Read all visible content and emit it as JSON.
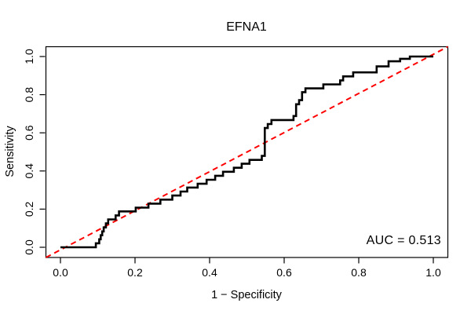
{
  "title": "EFNA1",
  "axes": {
    "xlabel": "1 − Specificity",
    "ylabel": "Sensitivity",
    "x_ticks": [
      "0.0",
      "0.2",
      "0.4",
      "0.6",
      "0.8",
      "1.0"
    ],
    "y_ticks": [
      "0.0",
      "0.2",
      "0.4",
      "0.6",
      "0.8",
      "1.0"
    ]
  },
  "annotation": {
    "auc_label": "AUC = 0.513"
  },
  "colors": {
    "curve": "#000000",
    "diagonal": "#ff0000",
    "box": "#000000",
    "background": "#ffffff",
    "text": "#000000"
  },
  "chart_data": {
    "type": "line",
    "subtype": "roc-step-curve",
    "title": "EFNA1",
    "xlabel": "1 − Specificity",
    "ylabel": "Sensitivity",
    "xlim": [
      0,
      1
    ],
    "ylim": [
      0,
      1
    ],
    "grid": false,
    "x_tick_values": [
      0.0,
      0.2,
      0.4,
      0.6,
      0.8,
      1.0
    ],
    "y_tick_values": [
      0.0,
      0.2,
      0.4,
      0.6,
      0.8,
      1.0
    ],
    "auc": 0.513,
    "diagonal_reference": {
      "from": [
        0,
        0
      ],
      "to": [
        1,
        1
      ],
      "style": "dashed",
      "color": "#ff0000"
    },
    "roc_curve_vertices": [
      [
        0.0,
        0.0
      ],
      [
        0.095,
        0.0
      ],
      [
        0.095,
        0.021
      ],
      [
        0.104,
        0.021
      ],
      [
        0.104,
        0.042
      ],
      [
        0.108,
        0.042
      ],
      [
        0.108,
        0.063
      ],
      [
        0.112,
        0.063
      ],
      [
        0.112,
        0.083
      ],
      [
        0.116,
        0.083
      ],
      [
        0.116,
        0.104
      ],
      [
        0.122,
        0.104
      ],
      [
        0.122,
        0.125
      ],
      [
        0.128,
        0.125
      ],
      [
        0.128,
        0.146
      ],
      [
        0.148,
        0.146
      ],
      [
        0.148,
        0.167
      ],
      [
        0.157,
        0.167
      ],
      [
        0.157,
        0.188
      ],
      [
        0.202,
        0.188
      ],
      [
        0.202,
        0.208
      ],
      [
        0.236,
        0.208
      ],
      [
        0.236,
        0.229
      ],
      [
        0.268,
        0.229
      ],
      [
        0.268,
        0.25
      ],
      [
        0.3,
        0.25
      ],
      [
        0.3,
        0.271
      ],
      [
        0.322,
        0.271
      ],
      [
        0.322,
        0.292
      ],
      [
        0.34,
        0.292
      ],
      [
        0.34,
        0.313
      ],
      [
        0.368,
        0.313
      ],
      [
        0.368,
        0.333
      ],
      [
        0.392,
        0.333
      ],
      [
        0.392,
        0.354
      ],
      [
        0.415,
        0.354
      ],
      [
        0.415,
        0.375
      ],
      [
        0.436,
        0.375
      ],
      [
        0.436,
        0.396
      ],
      [
        0.465,
        0.396
      ],
      [
        0.465,
        0.417
      ],
      [
        0.486,
        0.417
      ],
      [
        0.486,
        0.438
      ],
      [
        0.507,
        0.438
      ],
      [
        0.507,
        0.458
      ],
      [
        0.54,
        0.458
      ],
      [
        0.54,
        0.479
      ],
      [
        0.548,
        0.479
      ],
      [
        0.548,
        0.625
      ],
      [
        0.556,
        0.625
      ],
      [
        0.556,
        0.646
      ],
      [
        0.566,
        0.646
      ],
      [
        0.566,
        0.667
      ],
      [
        0.625,
        0.667
      ],
      [
        0.625,
        0.688
      ],
      [
        0.632,
        0.688
      ],
      [
        0.632,
        0.75
      ],
      [
        0.64,
        0.75
      ],
      [
        0.64,
        0.771
      ],
      [
        0.648,
        0.771
      ],
      [
        0.648,
        0.813
      ],
      [
        0.657,
        0.813
      ],
      [
        0.657,
        0.833
      ],
      [
        0.705,
        0.833
      ],
      [
        0.705,
        0.854
      ],
      [
        0.75,
        0.854
      ],
      [
        0.75,
        0.875
      ],
      [
        0.758,
        0.875
      ],
      [
        0.758,
        0.896
      ],
      [
        0.785,
        0.896
      ],
      [
        0.785,
        0.917
      ],
      [
        0.848,
        0.917
      ],
      [
        0.848,
        0.948
      ],
      [
        0.88,
        0.948
      ],
      [
        0.88,
        0.975
      ],
      [
        0.911,
        0.975
      ],
      [
        0.911,
        0.988
      ],
      [
        0.937,
        0.988
      ],
      [
        0.937,
        1.0
      ],
      [
        1.0,
        1.0
      ]
    ]
  }
}
